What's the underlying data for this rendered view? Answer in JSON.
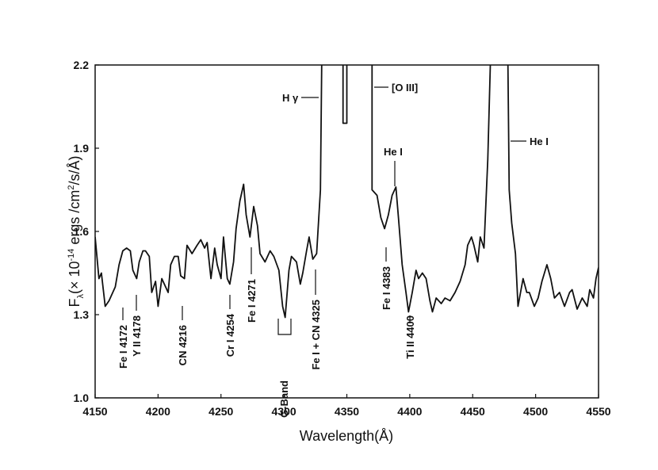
{
  "chart_data": {
    "type": "line",
    "x_label": "Wavelength(Å)",
    "y_label": {
      "main": "F",
      "sub": "λ",
      "text1": "(× 10",
      "sup1": "-14",
      "text2": " ergs /cm",
      "sup2": "2",
      "text3": "/s/Å)"
    },
    "color": "#111111",
    "xlim": [
      4150,
      4550
    ],
    "ylim": [
      1.0,
      2.2
    ],
    "xticks": [
      4150,
      4200,
      4250,
      4300,
      4350,
      4400,
      4450,
      4500,
      4550
    ],
    "yticks": [
      {
        "value": 1.0,
        "label": "1.0"
      },
      1.3,
      1.6,
      1.9,
      2.2
    ],
    "grid": false,
    "x": [
      4150,
      4153,
      4155,
      4158,
      4161,
      4166,
      4169,
      4172,
      4175,
      4178,
      4180,
      4183,
      4185,
      4188,
      4190,
      4193,
      4195,
      4198,
      4200,
      4203,
      4205,
      4208,
      4210,
      4213,
      4216,
      4218,
      4221,
      4223,
      4227,
      4231,
      4234,
      4237,
      4239,
      4242,
      4245,
      4247,
      4250,
      4252,
      4255,
      4257,
      4260,
      4262,
      4265,
      4268,
      4270,
      4273,
      4276,
      4279,
      4281,
      4285,
      4289,
      4292,
      4296,
      4299,
      4301,
      4304,
      4306,
      4310,
      4313,
      4315,
      4318,
      4320,
      4323,
      4326,
      4329,
      4330,
      4340,
      4347,
      4347,
      4350,
      4350,
      4360,
      4370,
      4370,
      4374,
      4377,
      4380,
      4383,
      4386,
      4389,
      4391,
      4394,
      4397,
      4399,
      4402,
      4405,
      4407,
      4410,
      4413,
      4416,
      4418,
      4421,
      4425,
      4428,
      4432,
      4436,
      4440,
      4444,
      4446,
      4449,
      4451,
      4454,
      4456,
      4459,
      4462,
      4464,
      4470,
      4478,
      4479,
      4481,
      4484,
      4486,
      4490,
      4493,
      4495,
      4499,
      4502,
      4505,
      4509,
      4512,
      4515,
      4519,
      4523,
      4527,
      4529,
      4533,
      4537,
      4541,
      4543,
      4546,
      4548,
      4550
    ],
    "values": [
      1.58,
      1.43,
      1.45,
      1.33,
      1.35,
      1.4,
      1.48,
      1.53,
      1.54,
      1.53,
      1.46,
      1.43,
      1.49,
      1.53,
      1.53,
      1.51,
      1.38,
      1.42,
      1.33,
      1.43,
      1.41,
      1.38,
      1.48,
      1.51,
      1.51,
      1.44,
      1.43,
      1.55,
      1.52,
      1.55,
      1.57,
      1.54,
      1.56,
      1.43,
      1.54,
      1.48,
      1.43,
      1.58,
      1.43,
      1.41,
      1.49,
      1.61,
      1.71,
      1.77,
      1.66,
      1.58,
      1.69,
      1.62,
      1.52,
      1.49,
      1.53,
      1.51,
      1.46,
      1.33,
      1.29,
      1.46,
      1.51,
      1.49,
      1.41,
      1.45,
      1.53,
      1.58,
      1.5,
      1.52,
      1.75,
      2.2,
      null,
      2.2,
      1.99,
      1.99,
      2.2,
      null,
      2.2,
      1.75,
      1.73,
      1.65,
      1.61,
      1.66,
      1.73,
      1.76,
      1.65,
      1.48,
      1.38,
      1.31,
      1.38,
      1.46,
      1.43,
      1.45,
      1.43,
      1.35,
      1.31,
      1.36,
      1.34,
      1.36,
      1.35,
      1.38,
      1.42,
      1.48,
      1.55,
      1.58,
      1.55,
      1.49,
      1.58,
      1.54,
      1.86,
      2.2,
      null,
      2.2,
      1.75,
      1.63,
      1.52,
      1.33,
      1.43,
      1.38,
      1.38,
      1.33,
      1.36,
      1.42,
      1.48,
      1.43,
      1.36,
      1.38,
      1.33,
      1.38,
      1.39,
      1.32,
      1.36,
      1.33,
      1.39,
      1.36,
      1.43,
      1.47
    ],
    "annotations": [
      "Fe I 4172",
      "Y II 4178",
      "CN 4216",
      "Cr I 4254",
      "Fe I 4271",
      "G-Band",
      "Fe I + CN 4325",
      "Fe I 4383",
      "Ti II 4400",
      "H γ",
      "[O III]",
      "He I",
      "He I"
    ]
  }
}
